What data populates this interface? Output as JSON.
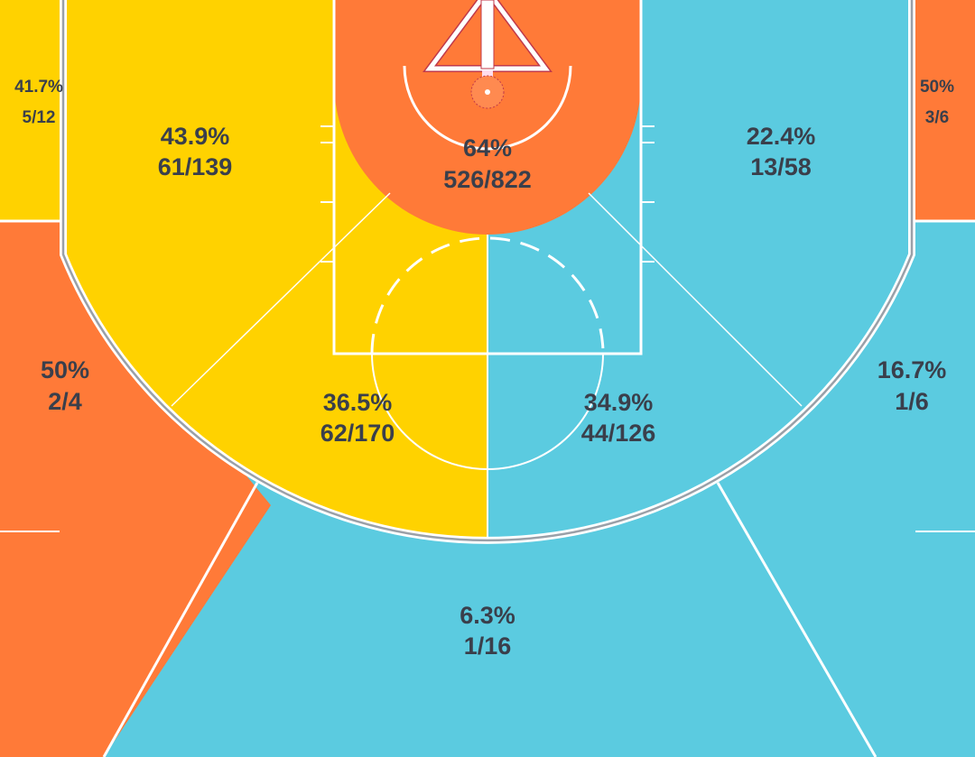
{
  "colors": {
    "yellow": "#FFD200",
    "orange": "#FF7A38",
    "cyan": "#5BCBE0",
    "text": "#3a3f4b",
    "line": "#ffffff"
  },
  "zones": {
    "left_corner_three": {
      "pct": "41.7%",
      "made_att": "5/12",
      "color": "yellow"
    },
    "right_corner_three": {
      "pct": "50%",
      "made_att": "3/6",
      "color": "orange"
    },
    "restricted_area": {
      "pct": "64%",
      "made_att": "526/822",
      "color": "orange"
    },
    "left_baseline_mid": {
      "pct": "43.9%",
      "made_att": "61/139",
      "color": "yellow"
    },
    "right_baseline_mid": {
      "pct": "22.4%",
      "made_att": "13/58",
      "color": "cyan"
    },
    "left_wing_three": {
      "pct": "50%",
      "made_att": "2/4",
      "color": "orange"
    },
    "right_wing_three": {
      "pct": "16.7%",
      "made_att": "1/6",
      "color": "cyan"
    },
    "left_elbow_mid": {
      "pct": "36.5%",
      "made_att": "62/170",
      "color": "yellow"
    },
    "right_elbow_mid": {
      "pct": "34.9%",
      "made_att": "44/126",
      "color": "cyan"
    },
    "top_three": {
      "pct": "6.3%",
      "made_att": "1/16",
      "color": "cyan"
    }
  }
}
